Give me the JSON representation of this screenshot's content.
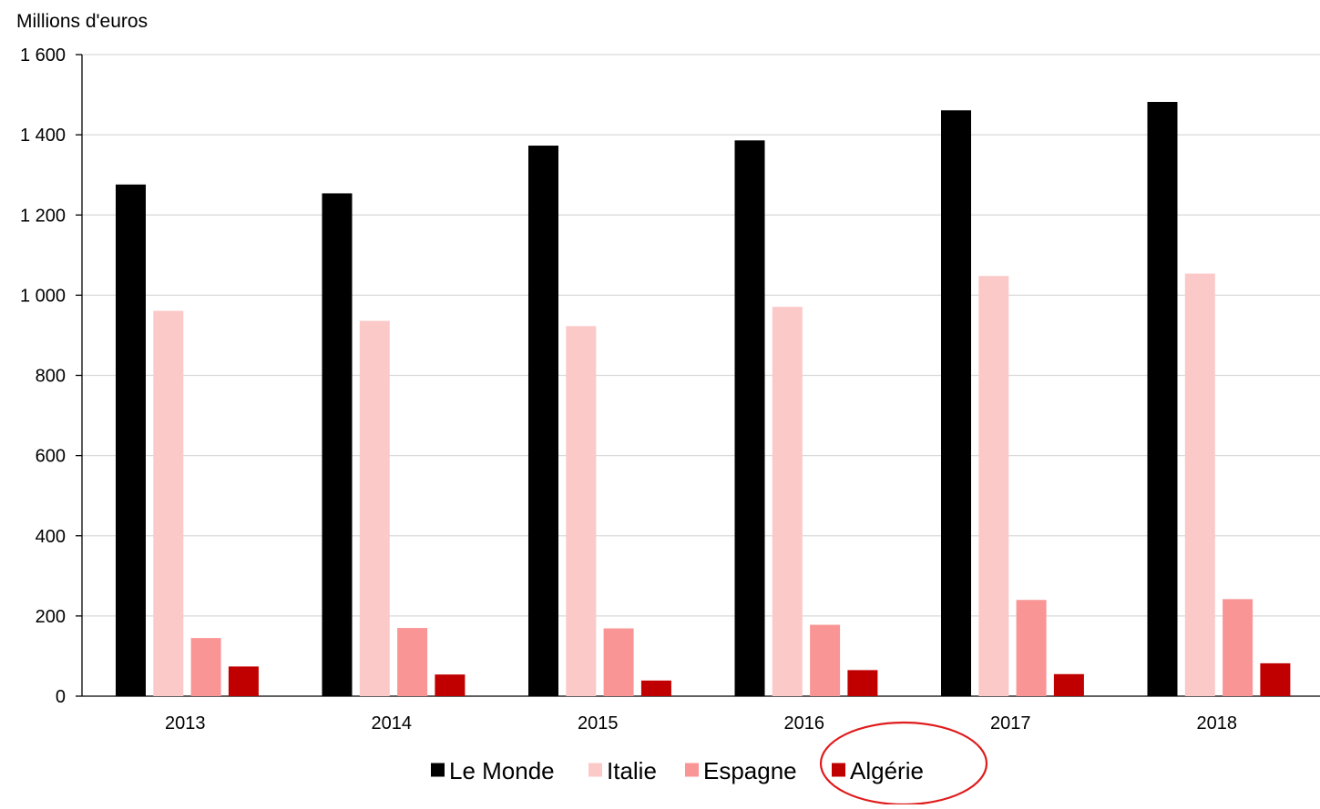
{
  "chart_data": {
    "type": "bar",
    "title": "",
    "ylabel": "Millions d'euros",
    "xlabel": "",
    "categories": [
      "2013",
      "2014",
      "2015",
      "2016",
      "2017",
      "2018"
    ],
    "ylim": [
      0,
      1600
    ],
    "yticks": [
      0,
      200,
      400,
      600,
      800,
      1000,
      1200,
      1400,
      1600
    ],
    "ytick_labels": [
      "0",
      "200",
      "400",
      "600",
      "800",
      "1 000",
      "1 200",
      "1 400",
      "1 600"
    ],
    "grid": "horizontal",
    "legend_position": "bottom",
    "series": [
      {
        "name": "Le Monde",
        "color": "#000000",
        "values": [
          1276,
          1254,
          1373,
          1386,
          1461,
          1482
        ]
      },
      {
        "name": "Italie",
        "color": "#fcc9c9",
        "values": [
          961,
          936,
          923,
          971,
          1048,
          1054
        ]
      },
      {
        "name": "Espagne",
        "color": "#fa9595",
        "values": [
          145,
          170,
          169,
          178,
          240,
          242
        ]
      },
      {
        "name": "Algérie",
        "color": "#c00000",
        "values": [
          74,
          54,
          39,
          65,
          55,
          82
        ]
      }
    ],
    "annotation": {
      "type": "ellipse-highlight",
      "target": "legend:Algérie",
      "color": "#e01b1b"
    }
  }
}
